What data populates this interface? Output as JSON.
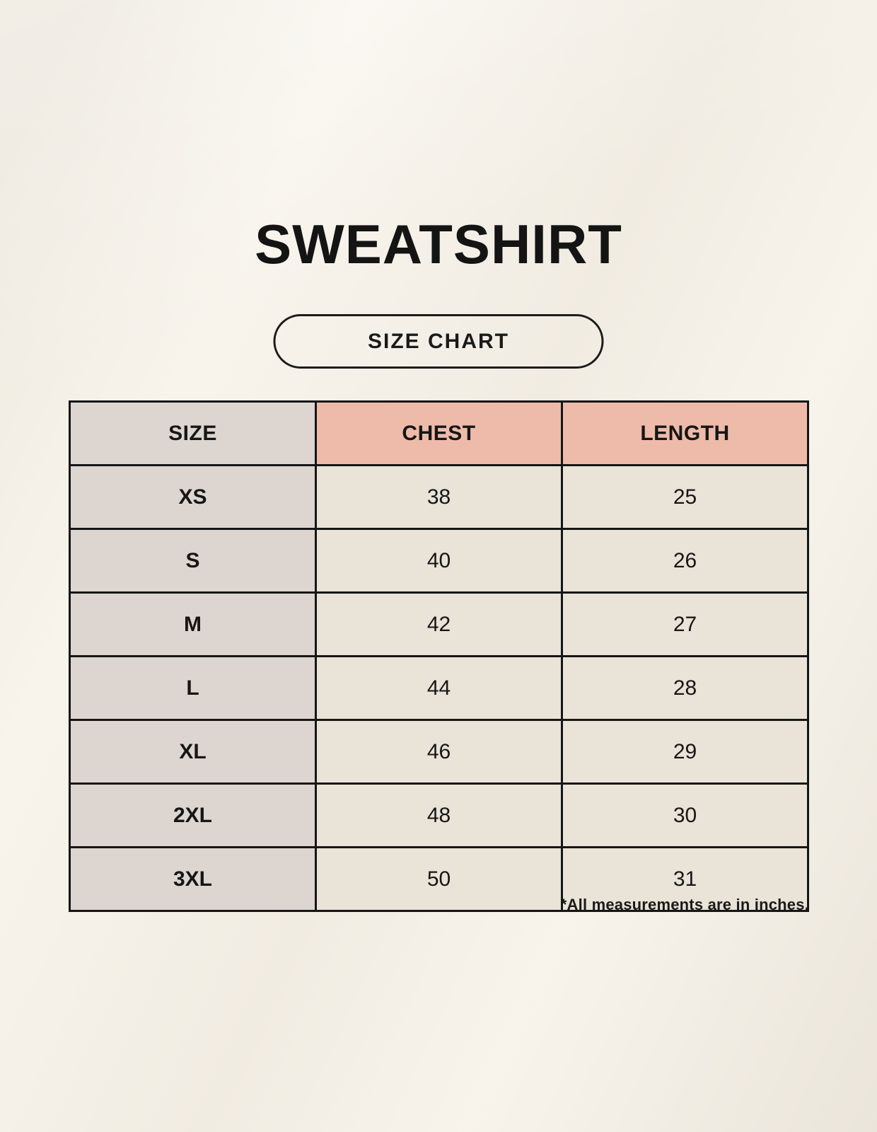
{
  "page": {
    "title": "SWEATSHIRT",
    "badge_label": "SIZE CHART",
    "footnote": "*All measurements are in inches."
  },
  "colors": {
    "background": "#f8f4ec",
    "size_column": "#ddd6d0",
    "header_accent": "#eebbaa",
    "data_cell": "#e9e3d8",
    "border": "#161616",
    "text": "#1a1a1a"
  },
  "chart_data": {
    "type": "table",
    "title": "SWEATSHIRT",
    "subtitle": "SIZE CHART",
    "columns": [
      "SIZE",
      "CHEST",
      "LENGTH"
    ],
    "rows": [
      [
        "XS",
        "38",
        "25"
      ],
      [
        "S",
        "40",
        "26"
      ],
      [
        "M",
        "42",
        "27"
      ],
      [
        "L",
        "44",
        "28"
      ],
      [
        "XL",
        "46",
        "29"
      ],
      [
        "2XL",
        "48",
        "30"
      ],
      [
        "3XL",
        "50",
        "31"
      ]
    ],
    "units": "inches",
    "note": "*All measurements are in inches."
  }
}
